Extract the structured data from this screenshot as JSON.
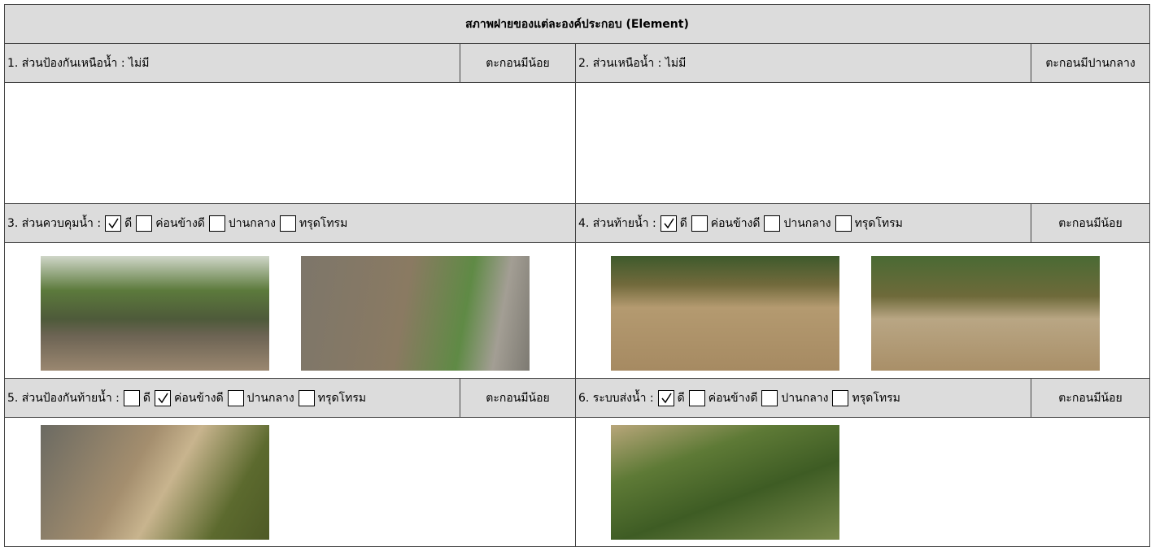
{
  "header": {
    "title": "สภาพฝายของแต่ละองค์ประกอบ (Element)"
  },
  "sections": [
    {
      "label": "1. ส่วนป้องกันเหนือน้ำ : ไม่มี",
      "sediment": "ตะกอนมีน้อย"
    },
    {
      "label": "2. ส่วนเหนือน้ำ : ไม่มี",
      "sediment": "ตะกอนมีปานกลาง"
    },
    {
      "label": "3. ส่วนควบคุมน้ำ :",
      "options": [
        {
          "label": "ดี",
          "checked": true
        },
        {
          "label": "ค่อนข้างดี",
          "checked": false
        },
        {
          "label": "ปานกลาง",
          "checked": false
        },
        {
          "label": "ทรุดโทรม",
          "checked": false
        }
      ]
    },
    {
      "label": "4. ส่วนท้ายน้ำ :",
      "options": [
        {
          "label": "ดี",
          "checked": true
        },
        {
          "label": "ค่อนข้างดี",
          "checked": false
        },
        {
          "label": "ปานกลาง",
          "checked": false
        },
        {
          "label": "ทรุดโทรม",
          "checked": false
        }
      ],
      "sediment": "ตะกอนมีน้อย"
    },
    {
      "label": "5. ส่วนป้องกันท้ายน้ำ :",
      "options": [
        {
          "label": "ดี",
          "checked": false
        },
        {
          "label": "ค่อนข้างดี",
          "checked": true
        },
        {
          "label": "ปานกลาง",
          "checked": false
        },
        {
          "label": "ทรุดโทรม",
          "checked": false
        }
      ],
      "sediment": "ตะกอนมีน้อย"
    },
    {
      "label": "6. ระบบส่งน้ำ :",
      "options": [
        {
          "label": "ดี",
          "checked": true
        },
        {
          "label": "ค่อนข้างดี",
          "checked": false
        },
        {
          "label": "ปานกลาง",
          "checked": false
        },
        {
          "label": "ทรุดโทรม",
          "checked": false
        }
      ],
      "sediment": "ตะกอนมีน้อย"
    }
  ]
}
